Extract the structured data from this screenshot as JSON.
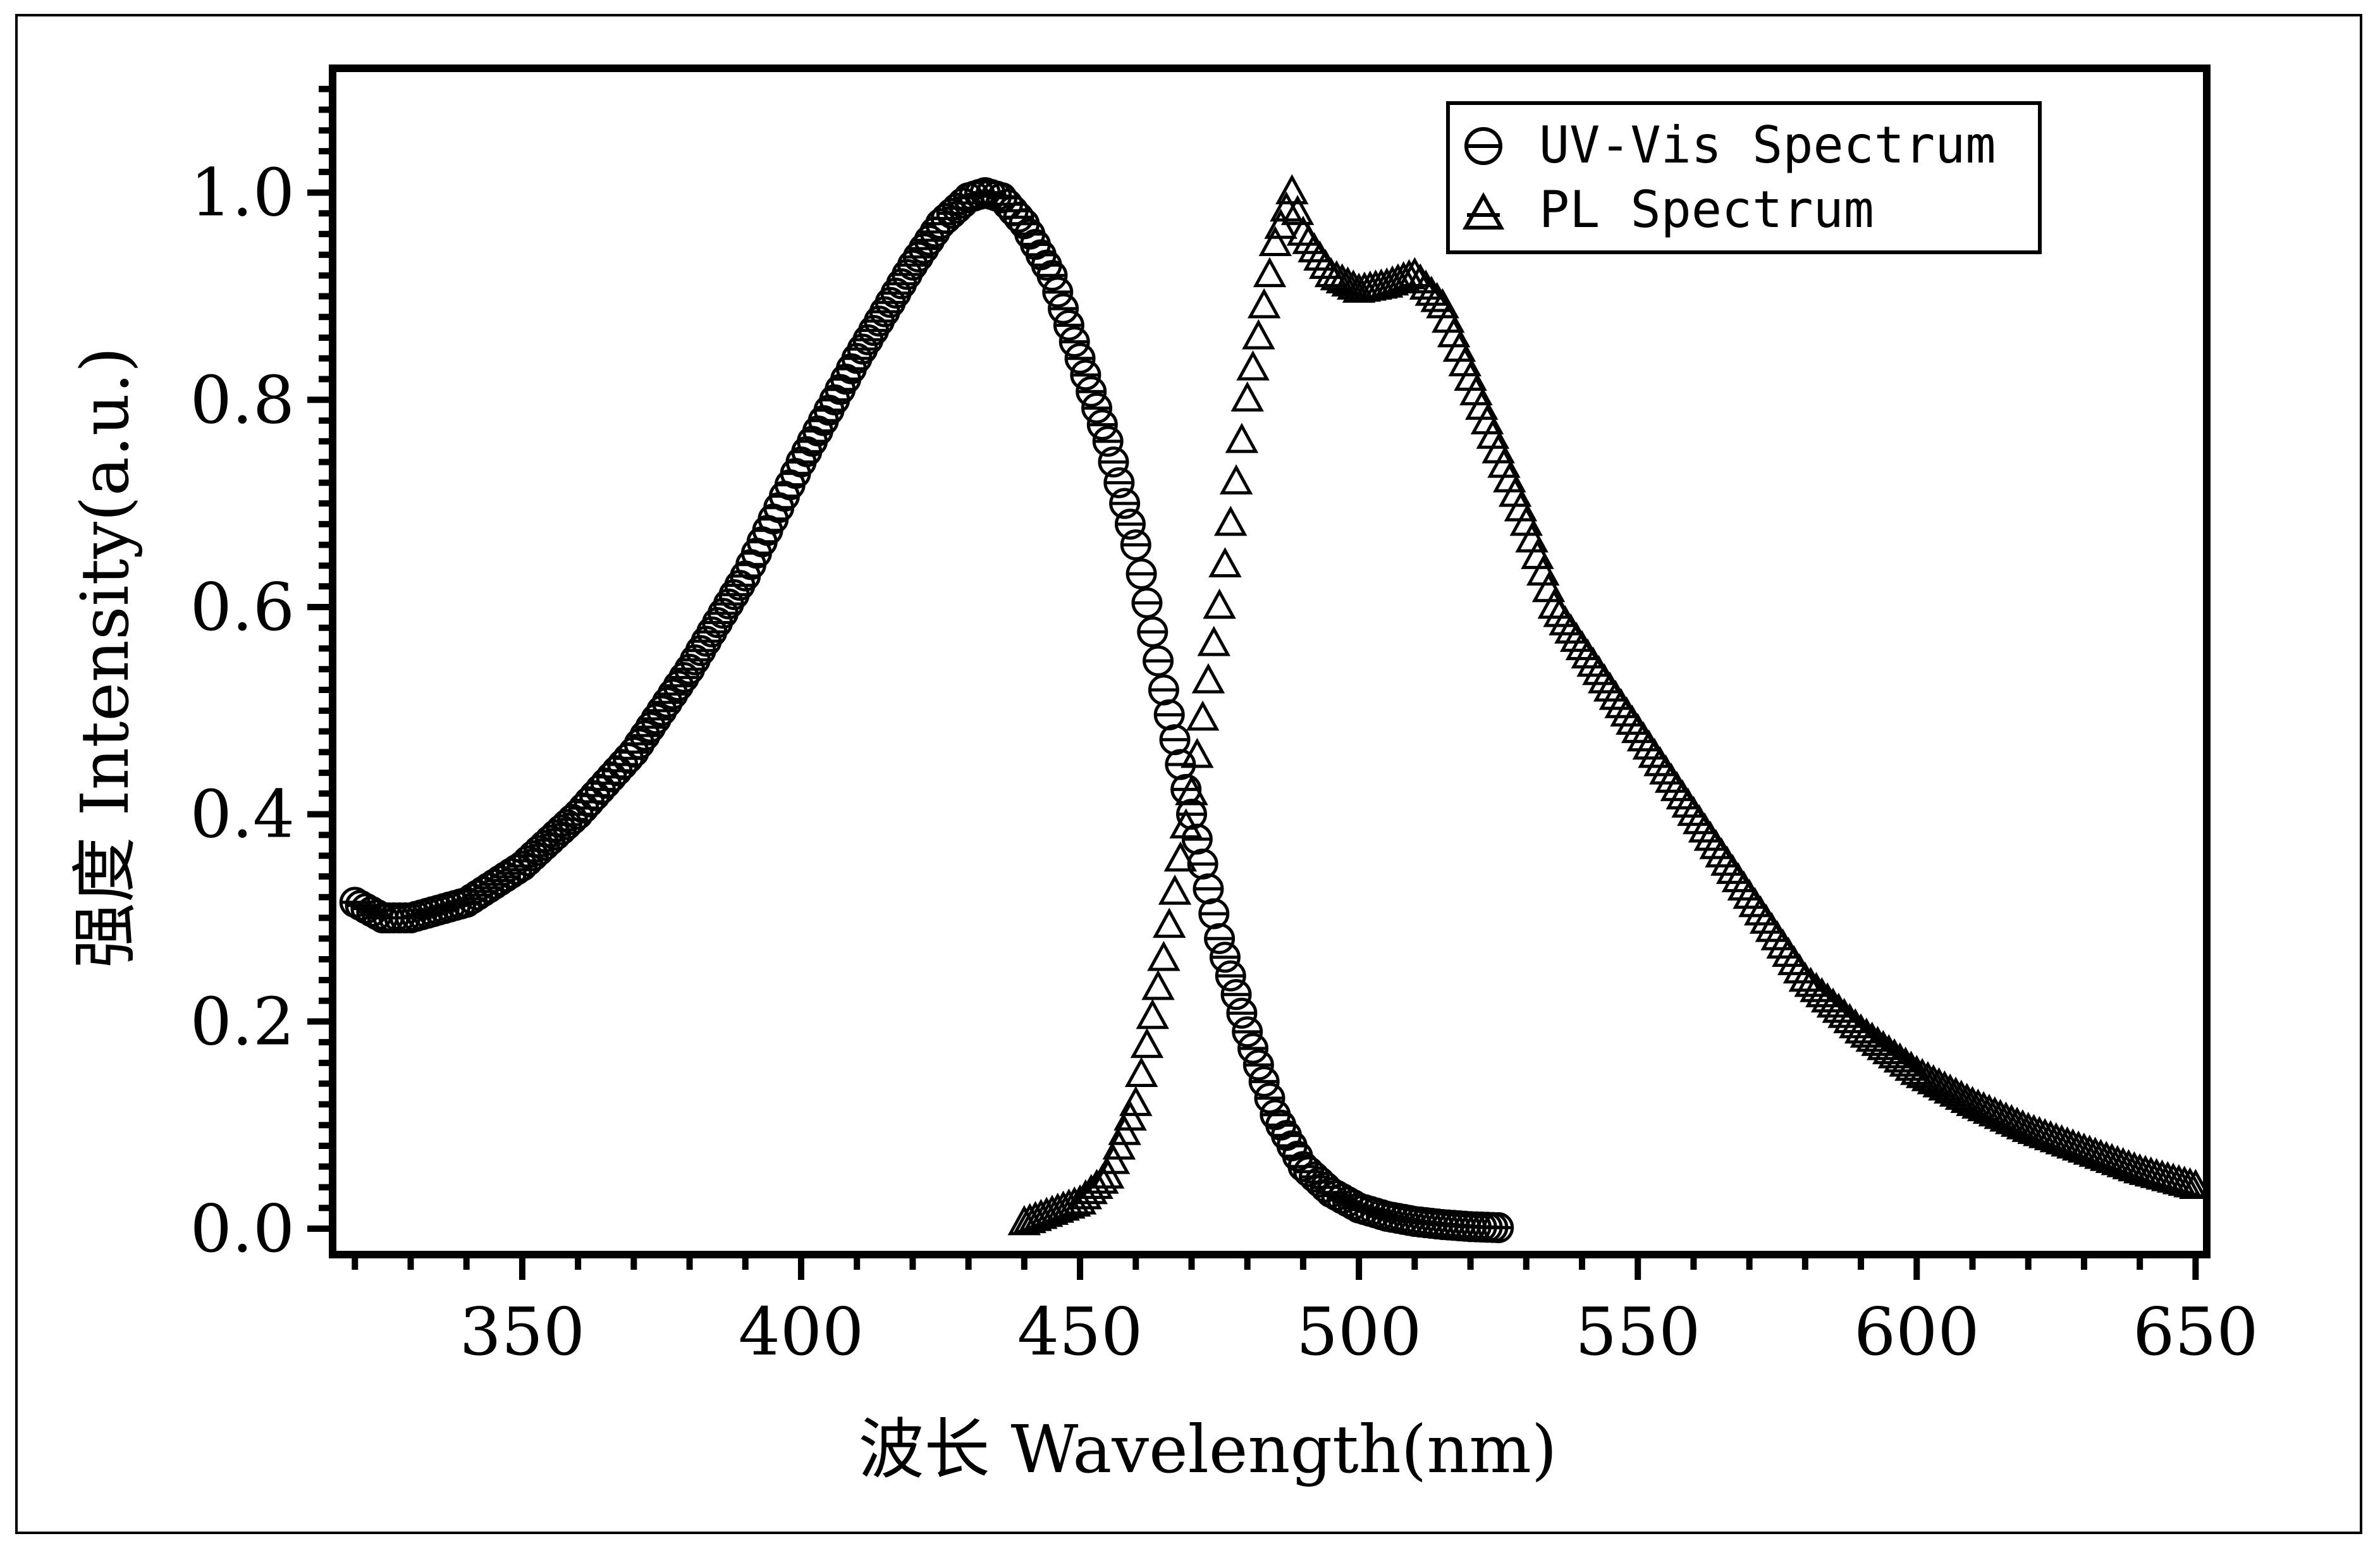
{
  "chart_data": {
    "type": "scatter",
    "title": "",
    "xlabel": "波长 Wavelength(nm)",
    "ylabel": "强度 Intensity(a.u.)",
    "xlim": [
      316,
      652
    ],
    "ylim": [
      -0.025,
      1.12
    ],
    "x_ticks": [
      350,
      400,
      450,
      500,
      550,
      600,
      650
    ],
    "x_tick_labels": [
      "350",
      "400",
      "450",
      "500",
      "550",
      "600",
      "650"
    ],
    "y_ticks": [
      0.0,
      0.2,
      0.4,
      0.6,
      0.8,
      1.0
    ],
    "y_tick_labels": [
      "0.0",
      "0.2",
      "0.4",
      "0.6",
      "0.8",
      "1.0"
    ],
    "grid": false,
    "legend_position": "top-right",
    "series": [
      {
        "name": "UV-Vis Spectrum",
        "marker": "circle-bar",
        "x": [
          320,
          325,
          330,
          340,
          350,
          360,
          370,
          380,
          390,
          400,
          410,
          420,
          425,
          430,
          433,
          436,
          440,
          445,
          450,
          455,
          460,
          465,
          470,
          475,
          480,
          485,
          490,
          495,
          500,
          505,
          510,
          515,
          520,
          525
        ],
        "y": [
          0.315,
          0.3,
          0.3,
          0.315,
          0.35,
          0.4,
          0.46,
          0.54,
          0.63,
          0.74,
          0.84,
          0.93,
          0.97,
          0.995,
          1.0,
          0.995,
          0.97,
          0.92,
          0.84,
          0.76,
          0.66,
          0.52,
          0.4,
          0.28,
          0.19,
          0.11,
          0.06,
          0.035,
          0.02,
          0.012,
          0.007,
          0.004,
          0.002,
          0.001
        ]
      },
      {
        "name": "PL Spectrum",
        "marker": "triangle-open",
        "x": [
          440,
          445,
          450,
          455,
          460,
          465,
          470,
          475,
          480,
          485,
          488,
          490,
          495,
          500,
          505,
          510,
          515,
          520,
          525,
          530,
          535,
          540,
          545,
          550,
          555,
          560,
          570,
          580,
          590,
          600,
          610,
          620,
          630,
          640,
          650
        ],
        "y": [
          0.005,
          0.015,
          0.025,
          0.05,
          0.12,
          0.26,
          0.42,
          0.6,
          0.8,
          0.95,
          1.0,
          0.96,
          0.92,
          0.905,
          0.91,
          0.92,
          0.89,
          0.82,
          0.75,
          0.68,
          0.6,
          0.56,
          0.52,
          0.48,
          0.44,
          0.4,
          0.32,
          0.24,
          0.19,
          0.15,
          0.12,
          0.095,
          0.075,
          0.055,
          0.04
        ]
      }
    ]
  }
}
